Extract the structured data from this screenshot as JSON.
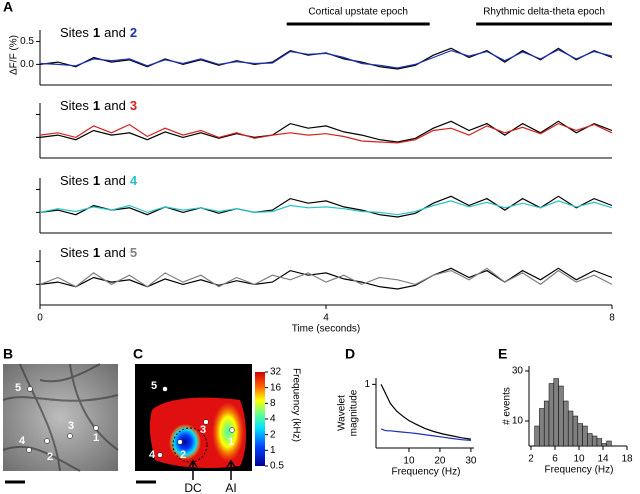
{
  "panel_labels": [
    "A",
    "B",
    "C",
    "D",
    "E"
  ],
  "chart_data": [
    {
      "type": "line",
      "title_prefix": "Sites",
      "title_joiner": "and",
      "ylabel": "ΔF/F (%)",
      "annotations": [
        {
          "text": "Cortical upstate epoch",
          "x": [
            3.45,
            5.45
          ]
        },
        {
          "text": "Rhythmic delta-theta epoch",
          "x": [
            6.1,
            8
          ]
        }
      ],
      "x": [
        0,
        0.25,
        0.5,
        0.75,
        1,
        1.25,
        1.5,
        1.75,
        2,
        2.25,
        2.5,
        2.75,
        3,
        3.25,
        3.5,
        3.75,
        4,
        4.25,
        4.5,
        4.75,
        5,
        5.25,
        5.5,
        5.75,
        6,
        6.25,
        6.5,
        6.75,
        7,
        7.25,
        7.5,
        7.75,
        8
      ],
      "xlim": [
        0,
        8
      ],
      "ylim": [
        -0.45,
        0.75
      ],
      "yticks": [
        {
          "value": 0,
          "label": "0.0"
        },
        0.5
      ],
      "series": [
        {
          "name": "1",
          "color": "#000000",
          "values": [
            0.0,
            0.05,
            -0.05,
            0.15,
            0.05,
            0.1,
            -0.05,
            0.12,
            0.0,
            0.1,
            -0.02,
            0.08,
            0.0,
            0.05,
            0.3,
            0.2,
            0.25,
            0.12,
            0.05,
            -0.05,
            -0.1,
            -0.02,
            0.2,
            0.35,
            0.15,
            0.3,
            0.05,
            0.3,
            0.1,
            0.35,
            0.1,
            0.3,
            0.15
          ]
        },
        {
          "name": "2",
          "color": "#1f2fb4",
          "values": [
            0.02,
            0.0,
            -0.03,
            0.12,
            0.08,
            0.12,
            -0.03,
            0.1,
            0.02,
            0.12,
            0.0,
            0.06,
            0.02,
            0.03,
            0.28,
            0.22,
            0.24,
            0.15,
            0.02,
            -0.02,
            -0.08,
            0.0,
            0.15,
            0.3,
            0.18,
            0.28,
            0.08,
            0.27,
            0.12,
            0.32,
            0.12,
            0.28,
            0.18
          ]
        }
      ]
    },
    {
      "type": "line",
      "title_prefix": "Sites",
      "title_joiner": "and",
      "x": [
        0,
        0.25,
        0.5,
        0.75,
        1,
        1.25,
        1.5,
        1.75,
        2,
        2.25,
        2.5,
        2.75,
        3,
        3.25,
        3.5,
        3.75,
        4,
        4.25,
        4.5,
        4.75,
        5,
        5.25,
        5.5,
        5.75,
        6,
        6.25,
        6.5,
        6.75,
        7,
        7.25,
        7.5,
        7.75,
        8
      ],
      "xlim": [
        0,
        8
      ],
      "ylim": [
        -0.45,
        0.75
      ],
      "yticks": [
        0,
        0.5
      ],
      "tick_labels": false,
      "series": [
        {
          "name": "1",
          "color": "#000000",
          "values": [
            0.0,
            0.05,
            -0.05,
            0.15,
            0.05,
            0.1,
            -0.05,
            0.12,
            0.0,
            0.1,
            -0.02,
            0.08,
            0.0,
            0.05,
            0.3,
            0.2,
            0.25,
            0.12,
            0.05,
            -0.05,
            -0.1,
            -0.02,
            0.2,
            0.35,
            0.15,
            0.3,
            0.05,
            0.3,
            0.1,
            0.35,
            0.1,
            0.3,
            0.15
          ]
        },
        {
          "name": "3",
          "color": "#d62020",
          "values": [
            0.05,
            0.1,
            0.0,
            0.25,
            0.1,
            0.28,
            0.02,
            0.2,
            0.05,
            0.15,
            0.0,
            0.1,
            -0.02,
            0.05,
            0.1,
            0.05,
            0.08,
            0.02,
            -0.08,
            -0.1,
            -0.12,
            -0.05,
            0.15,
            0.2,
            0.05,
            0.25,
            0.1,
            0.22,
            0.08,
            0.3,
            0.15,
            0.28,
            0.1
          ]
        }
      ]
    },
    {
      "type": "line",
      "title_prefix": "Sites",
      "title_joiner": "and",
      "x": [
        0,
        0.25,
        0.5,
        0.75,
        1,
        1.25,
        1.5,
        1.75,
        2,
        2.25,
        2.5,
        2.75,
        3,
        3.25,
        3.5,
        3.75,
        4,
        4.25,
        4.5,
        4.75,
        5,
        5.25,
        5.5,
        5.75,
        6,
        6.25,
        6.5,
        6.75,
        7,
        7.25,
        7.5,
        7.75,
        8
      ],
      "xlim": [
        0,
        8
      ],
      "ylim": [
        -0.45,
        0.75
      ],
      "yticks": [
        0,
        0.5
      ],
      "tick_labels": false,
      "series": [
        {
          "name": "1",
          "color": "#000000",
          "values": [
            0.0,
            0.05,
            -0.05,
            0.15,
            0.05,
            0.1,
            -0.05,
            0.12,
            0.0,
            0.1,
            -0.02,
            0.08,
            0.0,
            0.05,
            0.3,
            0.2,
            0.25,
            0.12,
            0.05,
            -0.05,
            -0.1,
            -0.02,
            0.2,
            0.35,
            0.15,
            0.3,
            0.05,
            0.3,
            0.1,
            0.35,
            0.1,
            0.3,
            0.15
          ]
        },
        {
          "name": "4",
          "color": "#27c4c4",
          "values": [
            0.0,
            0.08,
            0.02,
            0.12,
            0.05,
            0.15,
            0.0,
            0.12,
            0.05,
            0.1,
            0.02,
            0.08,
            0.0,
            0.02,
            0.15,
            0.1,
            0.12,
            0.08,
            0.02,
            0.0,
            -0.05,
            0.02,
            0.15,
            0.25,
            0.12,
            0.22,
            0.1,
            0.2,
            0.1,
            0.25,
            0.12,
            0.22,
            0.1
          ]
        }
      ]
    },
    {
      "type": "line",
      "title_prefix": "Sites",
      "title_joiner": "and",
      "xlabel": "Time (seconds)",
      "x": [
        0,
        0.25,
        0.5,
        0.75,
        1,
        1.25,
        1.5,
        1.75,
        2,
        2.25,
        2.5,
        2.75,
        3,
        3.25,
        3.5,
        3.75,
        4,
        4.25,
        4.5,
        4.75,
        5,
        5.25,
        5.5,
        5.75,
        6,
        6.25,
        6.5,
        6.75,
        7,
        7.25,
        7.5,
        7.75,
        8
      ],
      "xlim": [
        0,
        8
      ],
      "xticks": [
        0,
        4,
        8
      ],
      "ylim": [
        -0.45,
        0.75
      ],
      "yticks": [
        0,
        0.5
      ],
      "tick_labels": false,
      "series": [
        {
          "name": "1",
          "color": "#000000",
          "values": [
            0.0,
            0.05,
            -0.05,
            0.15,
            0.05,
            0.1,
            -0.05,
            0.12,
            0.0,
            0.1,
            -0.02,
            0.08,
            0.0,
            0.05,
            0.3,
            0.2,
            0.25,
            0.12,
            0.05,
            -0.05,
            -0.1,
            -0.02,
            0.2,
            0.35,
            0.15,
            0.3,
            0.05,
            0.3,
            0.1,
            0.35,
            0.1,
            0.3,
            0.15
          ]
        },
        {
          "name": "5",
          "color": "#808080",
          "values": [
            0.0,
            0.15,
            -0.05,
            0.25,
            0.0,
            0.2,
            -0.05,
            0.25,
            0.05,
            0.2,
            -0.05,
            0.15,
            0.0,
            0.2,
            0.1,
            0.25,
            0.05,
            0.2,
            0.0,
            0.15,
            0.1,
            0.0,
            0.2,
            0.3,
            0.1,
            0.35,
            0.05,
            0.25,
            0.0,
            0.3,
            0.05,
            0.2,
            0.0
          ]
        }
      ]
    },
    {
      "type": "line",
      "xlabel": "Frequency (Hz)",
      "ylabel": [
        "Wavelet",
        "magnitude"
      ],
      "x": [
        1,
        2,
        3,
        4,
        6,
        8,
        10,
        12,
        15,
        18,
        21,
        24,
        27,
        30
      ],
      "xlim": [
        0,
        31
      ],
      "xticks": [
        10,
        20,
        30
      ],
      "ylim": [
        0,
        1.1
      ],
      "yticks": [
        1
      ],
      "series": [
        {
          "color": "#000000",
          "values": [
            1.0,
            0.9,
            0.8,
            0.7,
            0.58,
            0.5,
            0.43,
            0.38,
            0.31,
            0.26,
            0.22,
            0.19,
            0.16,
            0.14
          ]
        },
        {
          "color": "#1f2fb4",
          "values": [
            0.3,
            0.28,
            0.27,
            0.27,
            0.26,
            0.25,
            0.24,
            0.23,
            0.21,
            0.19,
            0.17,
            0.15,
            0.13,
            0.12
          ]
        }
      ]
    },
    {
      "type": "histogram",
      "xlabel": "Frequency (Hz)",
      "ylabel": "# events",
      "color": "#808080",
      "bins": [
        2.6,
        3.4,
        4.2,
        5.0,
        5.8,
        6.6,
        7.4,
        8.2,
        9.0,
        9.8,
        10.6,
        11.4,
        12.2,
        13.0,
        13.8,
        14.6,
        15.4
      ],
      "values": [
        8,
        15,
        18,
        25,
        27,
        24,
        18,
        14,
        12,
        9,
        8,
        5,
        4,
        3,
        1,
        2
      ],
      "xlim": [
        2,
        18
      ],
      "xticks": [
        2,
        6,
        10,
        14,
        18
      ],
      "ylim": [
        0,
        32
      ],
      "yticks": [
        10,
        30
      ]
    }
  ],
  "image_b": {
    "sites": [
      "5",
      "4",
      "2",
      "3",
      "1"
    ]
  },
  "image_c": {
    "sites": [
      "5",
      "4",
      "2",
      "3",
      "1"
    ],
    "arrows": [
      "DC",
      "AI"
    ],
    "colorbar": {
      "label": "Frequency (kHz)",
      "lim": [
        0.5,
        32
      ],
      "ticks": [
        0.5,
        1,
        2,
        4,
        8,
        16,
        32
      ],
      "log": true
    }
  }
}
